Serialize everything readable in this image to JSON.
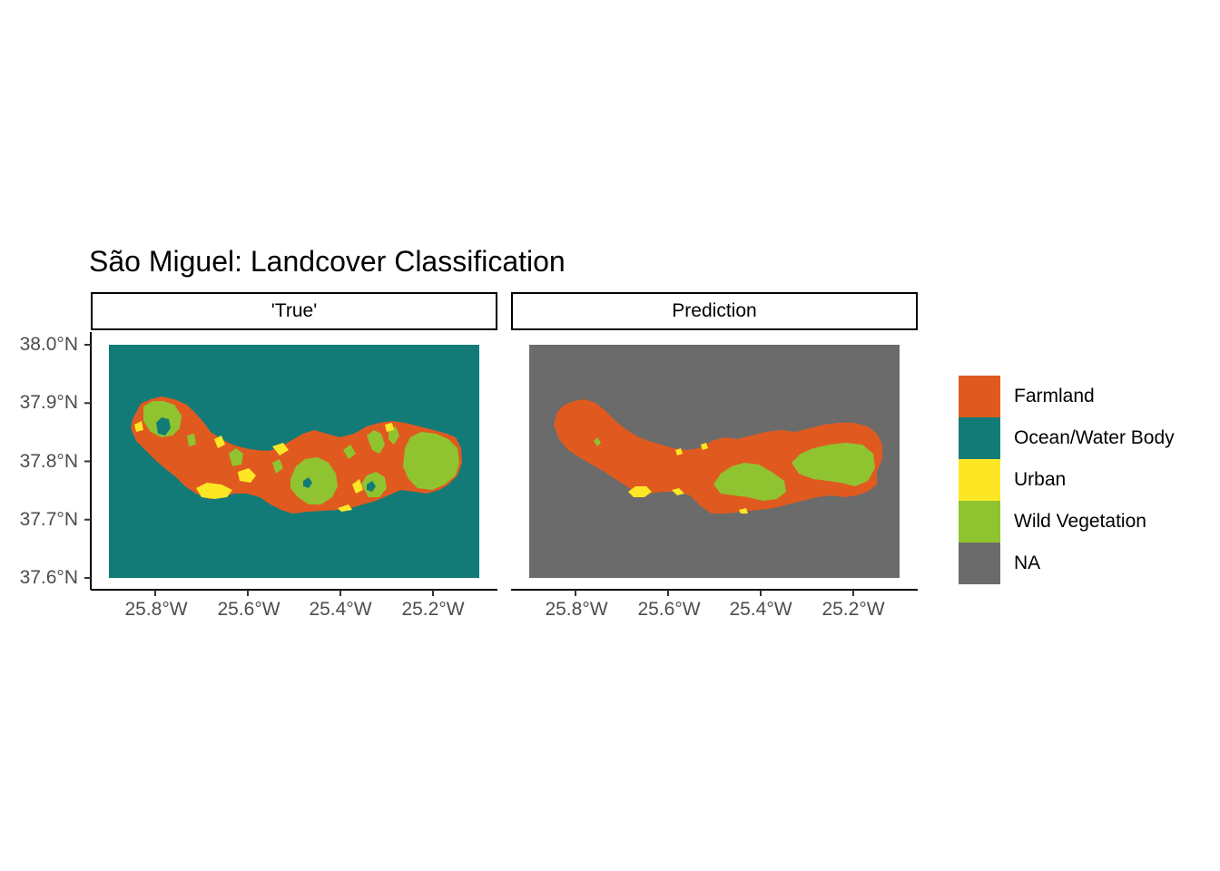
{
  "title": "São Miguel: Landcover Classification",
  "colors": {
    "farmland": "#e05a1f",
    "ocean": "#127b78",
    "urban": "#fde725",
    "wild_vegetation": "#8fc430",
    "na": "#6b6b6b"
  },
  "chart_data": {
    "type": "heatmap",
    "title": "São Miguel: Landcover Classification",
    "facets": [
      "'True'",
      "Prediction"
    ],
    "x_ticks": [
      "25.8°W",
      "25.6°W",
      "25.4°W",
      "25.2°W"
    ],
    "y_ticks": [
      "38.0°N",
      "37.9°N",
      "37.8°N",
      "37.7°N",
      "37.6°N"
    ],
    "x_tick_values": [
      -25.8,
      -25.6,
      -25.4,
      -25.2
    ],
    "y_tick_values": [
      38.0,
      37.9,
      37.8,
      37.7,
      37.6
    ],
    "xlim": [
      -25.9,
      -25.1
    ],
    "ylim": [
      37.6,
      38.0
    ],
    "legend_position": "right",
    "legend": [
      {
        "label": "Farmland",
        "color": "#e05a1f"
      },
      {
        "label": "Ocean/Water Body",
        "color": "#127b78"
      },
      {
        "label": "Urban",
        "color": "#fde725"
      },
      {
        "label": "Wild Vegetation",
        "color": "#8fc430"
      },
      {
        "label": "NA",
        "color": "#6b6b6b"
      }
    ]
  }
}
